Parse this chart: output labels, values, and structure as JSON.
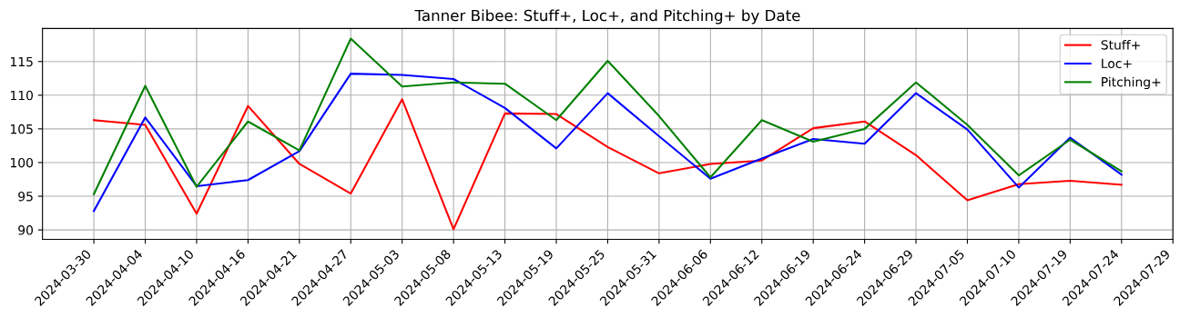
{
  "chart_data": {
    "type": "line",
    "title": "Tanner Bibee: Stuff+, Loc+, and Pitching+ by Date",
    "categories": [
      "2024-03-30",
      "2024-04-04",
      "2024-04-10",
      "2024-04-16",
      "2024-04-21",
      "2024-04-27",
      "2024-05-03",
      "2024-05-08",
      "2024-05-13",
      "2024-05-19",
      "2024-05-25",
      "2024-05-31",
      "2024-06-06",
      "2024-06-12",
      "2024-06-19",
      "2024-06-24",
      "2024-06-29",
      "2024-07-05",
      "2024-07-10",
      "2024-07-19",
      "2024-07-24",
      "2024-07-29"
    ],
    "series": [
      {
        "name": "Stuff+",
        "color": "#ff0000",
        "values": [
          106.3,
          105.6,
          92.4,
          108.4,
          99.8,
          95.4,
          109.4,
          90.1,
          107.3,
          107.2,
          102.3,
          98.4,
          99.8,
          100.3,
          105.1,
          106.1,
          101.1,
          94.4,
          96.8,
          97.3,
          96.7,
          null
        ]
      },
      {
        "name": "Loc+",
        "color": "#0000ff",
        "values": [
          92.8,
          106.7,
          96.5,
          97.4,
          101.7,
          113.2,
          113.0,
          112.4,
          108.1,
          102.1,
          110.3,
          103.9,
          97.6,
          100.6,
          103.5,
          102.8,
          110.3,
          104.9,
          96.3,
          103.7,
          98.2,
          null
        ]
      },
      {
        "name": "Pitching+",
        "color": "#008000",
        "values": [
          95.3,
          111.4,
          96.4,
          106.1,
          101.8,
          118.4,
          111.3,
          111.9,
          111.7,
          106.3,
          115.1,
          106.9,
          97.8,
          106.3,
          103.1,
          105.0,
          111.9,
          105.6,
          98.1,
          103.4,
          98.7,
          null
        ]
      }
    ],
    "ylim": [
      88.6,
      119.9
    ],
    "yticks": [
      90,
      95,
      100,
      105,
      110,
      115
    ],
    "grid": true,
    "legend": "top right",
    "marker": "none",
    "line_style": "solid"
  }
}
